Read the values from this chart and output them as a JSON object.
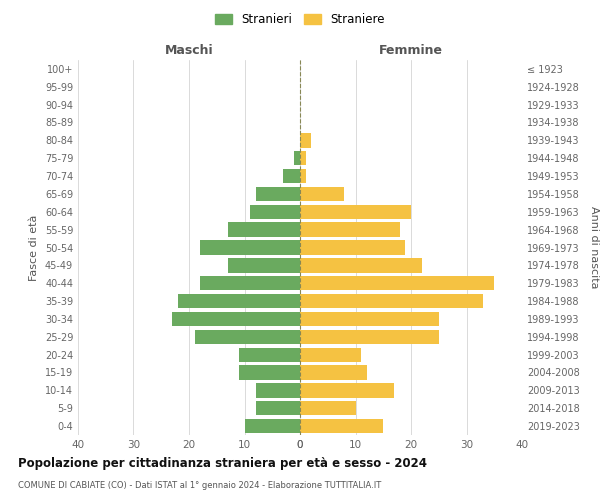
{
  "age_groups": [
    "0-4",
    "5-9",
    "10-14",
    "15-19",
    "20-24",
    "25-29",
    "30-34",
    "35-39",
    "40-44",
    "45-49",
    "50-54",
    "55-59",
    "60-64",
    "65-69",
    "70-74",
    "75-79",
    "80-84",
    "85-89",
    "90-94",
    "95-99",
    "100+"
  ],
  "birth_years": [
    "2019-2023",
    "2014-2018",
    "2009-2013",
    "2004-2008",
    "1999-2003",
    "1994-1998",
    "1989-1993",
    "1984-1988",
    "1979-1983",
    "1974-1978",
    "1969-1973",
    "1964-1968",
    "1959-1963",
    "1954-1958",
    "1949-1953",
    "1944-1948",
    "1939-1943",
    "1934-1938",
    "1929-1933",
    "1924-1928",
    "≤ 1923"
  ],
  "maschi": [
    10,
    8,
    8,
    11,
    11,
    19,
    23,
    22,
    18,
    13,
    18,
    13,
    9,
    8,
    3,
    1,
    0,
    0,
    0,
    0,
    0
  ],
  "femmine": [
    15,
    10,
    17,
    12,
    11,
    25,
    25,
    33,
    35,
    22,
    19,
    18,
    20,
    8,
    1,
    1,
    2,
    0,
    0,
    0,
    0
  ],
  "maschi_color": "#6aaa5f",
  "femmine_color": "#f5c242",
  "bar_height": 0.8,
  "xlim": 40,
  "title": "Popolazione per cittadinanza straniera per età e sesso - 2024",
  "subtitle": "COMUNE DI CABIATE (CO) - Dati ISTAT al 1° gennaio 2024 - Elaborazione TUTTITALIA.IT",
  "legend_stranieri": "Stranieri",
  "legend_straniere": "Straniere",
  "header_left": "Maschi",
  "header_right": "Femmine",
  "ylabel_left": "Fasce di età",
  "ylabel_right": "Anni di nascita",
  "bg_color": "#ffffff",
  "grid_color": "#cccccc",
  "xticks": [
    0,
    10,
    20,
    30,
    40
  ]
}
